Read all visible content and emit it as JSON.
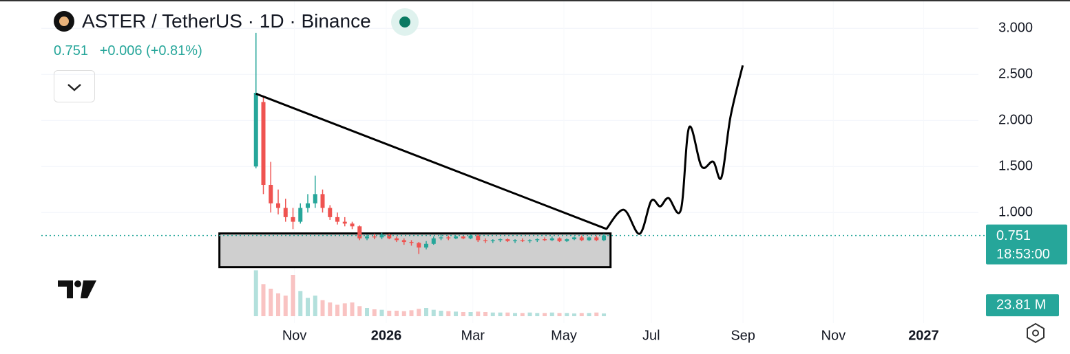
{
  "chart_data": {
    "type": "candlestick",
    "title": "ASTER / TetherUS · 1D · Binance",
    "last_price": {
      "value": 0.751,
      "label": "0.751"
    },
    "change": "+0.006",
    "change_pct": "(+0.81%)",
    "countdown": "18:53:00",
    "current_volume": {
      "value": 23.81,
      "label": "23.81 M"
    },
    "up_color": "#26a69a",
    "down_color": "#ef5350",
    "xlim": [
      -145,
      488
    ],
    "xticks": [
      {
        "value": 26,
        "label": "Nov"
      },
      {
        "value": 88,
        "label": "2026"
      },
      {
        "value": 146.5,
        "label": "Mar"
      },
      {
        "value": 208,
        "label": "May"
      },
      {
        "value": 267,
        "label": "Jul"
      },
      {
        "value": 329,
        "label": "Sep"
      },
      {
        "value": 390,
        "label": "Nov"
      },
      {
        "value": 451,
        "label": "2027"
      }
    ],
    "ylim": [
      -0.2,
      3.3
    ],
    "yticks": [
      {
        "value": 1,
        "label": "1.000"
      },
      {
        "value": 1.5,
        "label": "1.500"
      },
      {
        "value": 2,
        "label": "2.000"
      },
      {
        "value": 2.5,
        "label": "2.500"
      },
      {
        "value": 3,
        "label": "3.000"
      }
    ],
    "volume_ylim": [
      0,
      120
    ],
    "x": [
      0,
      5,
      10,
      15,
      20,
      25,
      30,
      35,
      40,
      45,
      50,
      55,
      60,
      65,
      70,
      75,
      80,
      85,
      90,
      95,
      100,
      105,
      110,
      115,
      120,
      125,
      130,
      135,
      140,
      145,
      150,
      155,
      160,
      165,
      170,
      175,
      180,
      185,
      190,
      195,
      200,
      205,
      210,
      215,
      220,
      225,
      230,
      235
    ],
    "candles": [
      [
        1.5,
        2.95,
        1.48,
        2.3
      ],
      [
        2.2,
        2.25,
        1.2,
        1.3
      ],
      [
        1.3,
        1.55,
        1.0,
        1.1
      ],
      [
        1.1,
        1.25,
        0.98,
        1.05
      ],
      [
        1.05,
        1.15,
        0.9,
        0.95
      ],
      [
        0.95,
        1.05,
        0.82,
        0.9
      ],
      [
        0.9,
        1.1,
        0.88,
        1.05
      ],
      [
        1.05,
        1.2,
        1.0,
        1.1
      ],
      [
        1.1,
        1.4,
        1.05,
        1.2
      ],
      [
        1.2,
        1.25,
        1.0,
        1.05
      ],
      [
        1.05,
        1.08,
        0.92,
        0.95
      ],
      [
        0.95,
        1.0,
        0.87,
        0.9
      ],
      [
        0.9,
        0.95,
        0.85,
        0.88
      ],
      [
        0.88,
        0.9,
        0.82,
        0.85
      ],
      [
        0.85,
        0.86,
        0.7,
        0.72
      ],
      [
        0.72,
        0.76,
        0.7,
        0.74
      ],
      [
        0.74,
        0.77,
        0.71,
        0.73
      ],
      [
        0.73,
        0.78,
        0.71,
        0.76
      ],
      [
        0.76,
        0.77,
        0.71,
        0.72
      ],
      [
        0.72,
        0.74,
        0.68,
        0.7
      ],
      [
        0.7,
        0.72,
        0.65,
        0.68
      ],
      [
        0.68,
        0.7,
        0.64,
        0.67
      ],
      [
        0.67,
        0.68,
        0.55,
        0.62
      ],
      [
        0.62,
        0.69,
        0.6,
        0.66
      ],
      [
        0.66,
        0.74,
        0.65,
        0.72
      ],
      [
        0.72,
        0.76,
        0.7,
        0.73
      ],
      [
        0.73,
        0.75,
        0.7,
        0.72
      ],
      [
        0.72,
        0.75,
        0.71,
        0.74
      ],
      [
        0.74,
        0.75,
        0.71,
        0.72
      ],
      [
        0.72,
        0.76,
        0.71,
        0.75
      ],
      [
        0.75,
        0.76,
        0.68,
        0.7
      ],
      [
        0.7,
        0.72,
        0.67,
        0.69
      ],
      [
        0.69,
        0.71,
        0.67,
        0.7
      ],
      [
        0.7,
        0.72,
        0.68,
        0.71
      ],
      [
        0.71,
        0.72,
        0.68,
        0.69
      ],
      [
        0.69,
        0.71,
        0.67,
        0.7
      ],
      [
        0.7,
        0.72,
        0.68,
        0.69
      ],
      [
        0.69,
        0.71,
        0.67,
        0.7
      ],
      [
        0.7,
        0.72,
        0.68,
        0.71
      ],
      [
        0.71,
        0.73,
        0.69,
        0.7
      ],
      [
        0.7,
        0.74,
        0.69,
        0.72
      ],
      [
        0.72,
        0.73,
        0.68,
        0.69
      ],
      [
        0.69,
        0.72,
        0.68,
        0.71
      ],
      [
        0.71,
        0.74,
        0.7,
        0.73
      ],
      [
        0.73,
        0.75,
        0.69,
        0.7
      ],
      [
        0.7,
        0.74,
        0.69,
        0.73
      ],
      [
        0.73,
        0.75,
        0.69,
        0.7
      ],
      [
        0.7,
        0.77,
        0.69,
        0.751
      ]
    ],
    "volumes": [
      100,
      70,
      60,
      50,
      45,
      90,
      55,
      40,
      45,
      35,
      30,
      25,
      28,
      30,
      22,
      18,
      15,
      14,
      12,
      12,
      11,
      13,
      16,
      18,
      14,
      12,
      11,
      10,
      9,
      9,
      10,
      9,
      8,
      8,
      8,
      7,
      7,
      8,
      7,
      7,
      8,
      7,
      7,
      6,
      7,
      7,
      8,
      6
    ],
    "drawings": {
      "trendline": [
        [
          0,
          2.29
        ],
        [
          237,
          0.82
        ]
      ],
      "rectangle": [
        [
          -24.7,
          0.773
        ],
        [
          239.5,
          0.407
        ]
      ],
      "projection": [
        [
          236.7,
          0.821
        ],
        [
          248.4,
          1.03
        ],
        [
          259.1,
          0.769
        ],
        [
          267,
          1.127
        ],
        [
          273,
          1.067
        ],
        [
          278.6,
          1.157
        ],
        [
          287,
          1.03
        ],
        [
          292.6,
          1.925
        ],
        [
          301,
          1.5
        ],
        [
          308.8,
          1.552
        ],
        [
          314.4,
          1.381
        ],
        [
          320.5,
          2.037
        ],
        [
          328.8,
          2.597
        ]
      ]
    }
  }
}
